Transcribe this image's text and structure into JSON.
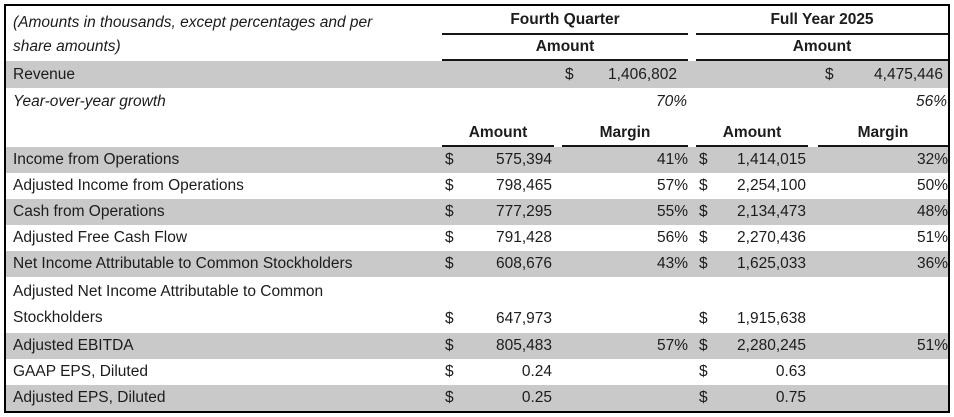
{
  "header": {
    "note_line1": "(Amounts in thousands, except percentages and per",
    "note_line2": "share amounts)",
    "groups": [
      {
        "title": "Fourth Quarter",
        "subtitle": "Amount"
      },
      {
        "title": "Full Year 2025",
        "subtitle": "Amount"
      }
    ],
    "sub_headers": [
      "Amount",
      "Margin",
      "Amount",
      "Margin"
    ]
  },
  "top_rows": [
    {
      "label": "Revenue",
      "q4_dollar": "$",
      "q4_value": "1,406,802",
      "fy_dollar": "$",
      "fy_value": "4,475,446"
    },
    {
      "label": "Year-over-year growth",
      "q4_value": "70%",
      "fy_value": "56%"
    }
  ],
  "rows": [
    {
      "label": "Income from Operations",
      "q4_dollar": "$",
      "q4_amount": "575,394",
      "q4_margin": "41%",
      "fy_dollar": "$",
      "fy_amount": "1,414,015",
      "fy_margin": "32%"
    },
    {
      "label": "Adjusted Income from Operations",
      "q4_dollar": "$",
      "q4_amount": "798,465",
      "q4_margin": "57%",
      "fy_dollar": "$",
      "fy_amount": "2,254,100",
      "fy_margin": "50%"
    },
    {
      "label": "Cash from Operations",
      "q4_dollar": "$",
      "q4_amount": "777,295",
      "q4_margin": "55%",
      "fy_dollar": "$",
      "fy_amount": "2,134,473",
      "fy_margin": "48%"
    },
    {
      "label": "Adjusted Free Cash Flow",
      "q4_dollar": "$",
      "q4_amount": "791,428",
      "q4_margin": "56%",
      "fy_dollar": "$",
      "fy_amount": "2,270,436",
      "fy_margin": "51%"
    },
    {
      "label": "Net Income Attributable to Common Stockholders",
      "q4_dollar": "$",
      "q4_amount": "608,676",
      "q4_margin": "43%",
      "fy_dollar": "$",
      "fy_amount": "1,625,033",
      "fy_margin": "36%"
    },
    {
      "label": "Adjusted Net Income Attributable to Common Stockholders",
      "q4_dollar": "$",
      "q4_amount": "647,973",
      "q4_margin": "",
      "fy_dollar": "$",
      "fy_amount": "1,915,638",
      "fy_margin": ""
    },
    {
      "label": "Adjusted EBITDA",
      "q4_dollar": "$",
      "q4_amount": "805,483",
      "q4_margin": "57%",
      "fy_dollar": "$",
      "fy_amount": "2,280,245",
      "fy_margin": "51%"
    },
    {
      "label": "GAAP EPS, Diluted",
      "q4_dollar": "$",
      "q4_amount": "0.24",
      "q4_margin": "",
      "fy_dollar": "$",
      "fy_amount": "0.63",
      "fy_margin": ""
    },
    {
      "label": "Adjusted EPS, Diluted",
      "q4_dollar": "$",
      "q4_amount": "0.25",
      "q4_margin": "",
      "fy_dollar": "$",
      "fy_amount": "0.75",
      "fy_margin": ""
    }
  ],
  "colors": {
    "row_shade": "#c9c9c9",
    "border": "#000000",
    "text": "#1c1c1c"
  }
}
